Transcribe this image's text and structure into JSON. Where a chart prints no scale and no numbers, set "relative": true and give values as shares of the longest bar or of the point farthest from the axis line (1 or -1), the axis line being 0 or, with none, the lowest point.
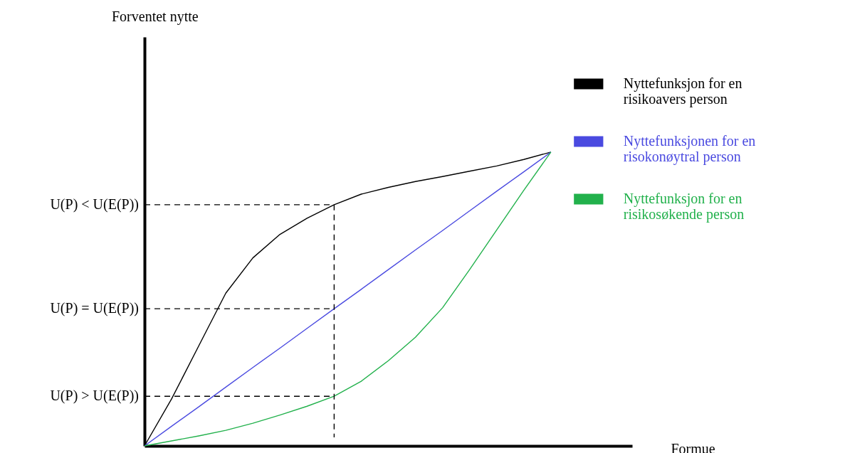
{
  "chart_data": {
    "type": "line",
    "relative": true,
    "legend": "right",
    "xlabel": "Formue",
    "categories": [
      null,
      null,
      null,
      null,
      null,
      null,
      null,
      null,
      null,
      null,
      null,
      null,
      null,
      null,
      null,
      null,
      null,
      null,
      null
    ],
    "series": [
      {
        "name": "Nyttefunksjon for en risikoavers person",
        "color": "#000000",
        "values": [
          0,
          0.16,
          0.34,
          0.52,
          0.64,
          0.72,
          0.775,
          0.821,
          0.857,
          0.88,
          0.9,
          0.917,
          0.935,
          0.953,
          0.975,
          1,
          null,
          null,
          null
        ]
      },
      {
        "name": "Nyttefunksjonen for en risokonøytral person",
        "color": "#4a4ae0",
        "values": [
          0,
          0.067,
          0.133,
          0.2,
          0.267,
          0.333,
          0.4,
          0.467,
          0.533,
          0.6,
          0.667,
          0.733,
          0.8,
          0.867,
          0.933,
          1,
          null,
          null,
          null
        ]
      },
      {
        "name": "Nyttefunksjon for en risikosøkende person",
        "color": "#22b14c",
        "values": [
          0,
          0.017,
          0.034,
          0.053,
          0.077,
          0.105,
          0.135,
          0.169,
          0.22,
          0.29,
          0.37,
          0.47,
          0.6,
          0.735,
          0.87,
          1,
          null,
          null,
          null
        ]
      },
      {
        "color": "#000000",
        "line_style": "dashed",
        "values": [
          0.821,
          0.821,
          0.821,
          0.821,
          0.821,
          0.821,
          0.821,
          0.821,
          null,
          null,
          null,
          null,
          null,
          null,
          null,
          null,
          null,
          null,
          null
        ]
      },
      {
        "color": "#000000",
        "line_style": "dashed",
        "values": [
          0.467,
          0.467,
          0.467,
          0.467,
          0.467,
          0.467,
          0.467,
          0.467,
          null,
          null,
          null,
          null,
          null,
          null,
          null,
          null,
          null,
          null,
          null
        ]
      },
      {
        "color": "#000000",
        "line_style": "dashed",
        "values": [
          0.169,
          0.169,
          0.169,
          0.169,
          0.169,
          0.169,
          0.169,
          0.169,
          null,
          null,
          null,
          null,
          null,
          null,
          null,
          null,
          null,
          null,
          null
        ]
      }
    ],
    "annotations": [
      "Forventet nytte",
      "U(P) < U(E(P))",
      "U(P) = U(E(P))",
      "U(P) > U(E(P))"
    ]
  }
}
